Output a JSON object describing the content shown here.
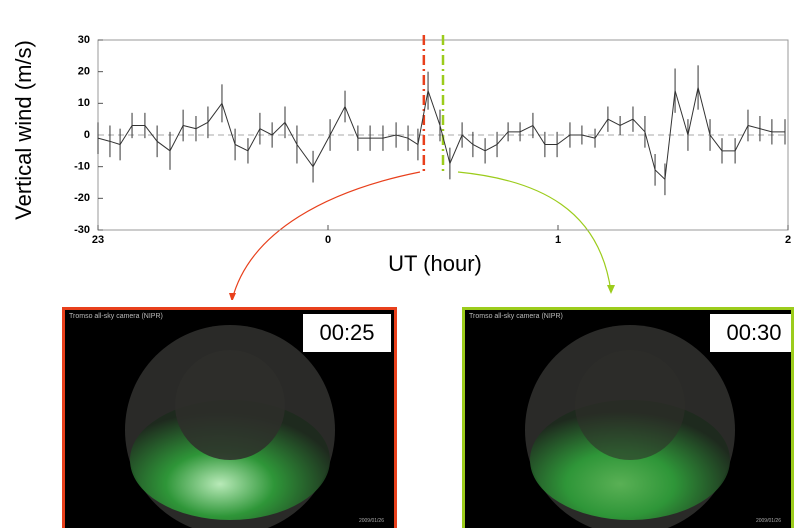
{
  "chart_data": {
    "type": "line",
    "ylabel": "Vertical wind (m/s)",
    "xlabel": "UT (hour)",
    "xlim": [
      23,
      26
    ],
    "xticks": [
      {
        "value": 23,
        "label": "23"
      },
      {
        "value": 24,
        "label": "0"
      },
      {
        "value": 25,
        "label": "1"
      },
      {
        "value": 26,
        "label": "2"
      }
    ],
    "ylim": [
      -30,
      30
    ],
    "yticks": [
      30,
      20,
      10,
      0,
      -10,
      -20,
      -30
    ],
    "zero_line": true,
    "color": "#333333",
    "x": [
      23.0,
      23.052,
      23.096,
      23.148,
      23.204,
      23.257,
      23.313,
      23.37,
      23.426,
      23.478,
      23.539,
      23.596,
      23.652,
      23.704,
      23.757,
      23.813,
      23.865,
      23.935,
      24.009,
      24.074,
      24.13,
      24.183,
      24.239,
      24.296,
      24.348,
      24.391,
      24.435,
      24.487,
      24.53,
      24.583,
      24.63,
      24.683,
      24.735,
      24.783,
      24.835,
      24.891,
      24.943,
      24.996,
      25.052,
      25.104,
      25.161,
      25.217,
      25.27,
      25.326,
      25.378,
      25.422,
      25.465,
      25.509,
      25.565,
      25.609,
      25.661,
      25.713,
      25.77,
      25.826,
      25.878,
      25.93,
      25.987
    ],
    "values": [
      -1,
      -2,
      -3,
      3,
      3,
      -2,
      -5,
      3,
      2,
      4,
      10,
      -3,
      -5,
      2,
      0,
      4,
      -3,
      -10,
      0,
      9,
      -1,
      -1,
      -1,
      0,
      -1,
      -3,
      14,
      3,
      -9,
      0,
      -3,
      -5,
      -3,
      1,
      1,
      3,
      -3,
      -3,
      0,
      0,
      -1,
      5,
      3,
      5,
      1,
      -11,
      -14,
      14,
      0,
      15,
      0,
      -5,
      -5,
      3,
      2,
      1,
      1
    ],
    "errors": [
      5,
      5,
      5,
      4,
      4,
      5,
      6,
      5,
      4,
      5,
      6,
      5,
      4,
      5,
      4,
      5,
      6,
      5,
      5,
      5,
      4,
      4,
      4,
      4,
      4,
      5,
      6,
      5,
      5,
      4,
      4,
      4,
      4,
      3,
      3,
      4,
      4,
      4,
      4,
      3,
      3,
      4,
      3,
      4,
      5,
      5,
      5,
      7,
      5,
      7,
      5,
      4,
      4,
      5,
      4,
      4,
      4
    ],
    "markers": [
      {
        "x": 24.4167,
        "color": "#e8401c"
      },
      {
        "x": 24.5,
        "color": "#9ccc1c"
      }
    ]
  },
  "panels": [
    {
      "caption": "Tromso all-sky camera (NIPR)",
      "time": "00:25",
      "date": "2009/01/26",
      "color": "#e8401c"
    },
    {
      "caption": "Tromso all-sky camera (NIPR)",
      "time": "00:30",
      "date": "2009/01/26",
      "color": "#9ccc1c"
    }
  ]
}
